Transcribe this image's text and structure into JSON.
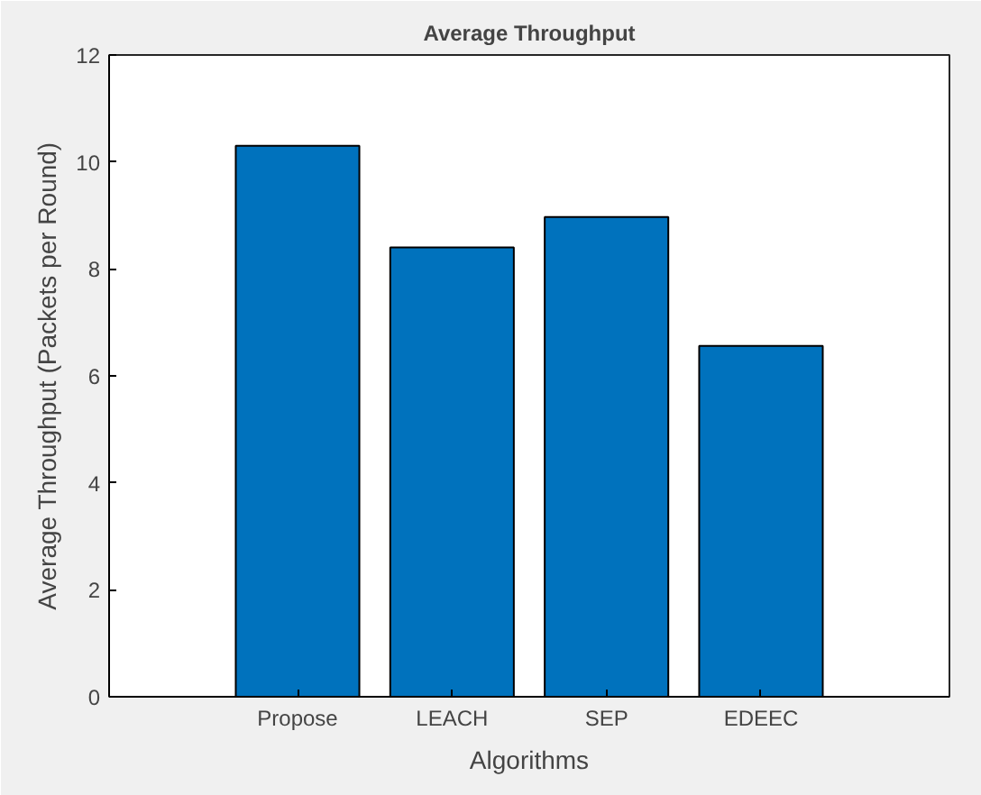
{
  "chart_data": {
    "type": "bar",
    "title": "Average Throughput",
    "xlabel": "Algorithms",
    "ylabel": "Average Throughput (Packets per Round)",
    "categories": [
      "Propose",
      "LEACH",
      "SEP",
      "EDEEC"
    ],
    "values": [
      10.3,
      8.4,
      8.97,
      6.56
    ],
    "color": "#0072bd",
    "ylim": [
      0,
      12
    ],
    "yticks": [
      0,
      2,
      4,
      6,
      8,
      10,
      12
    ],
    "grid": false
  }
}
